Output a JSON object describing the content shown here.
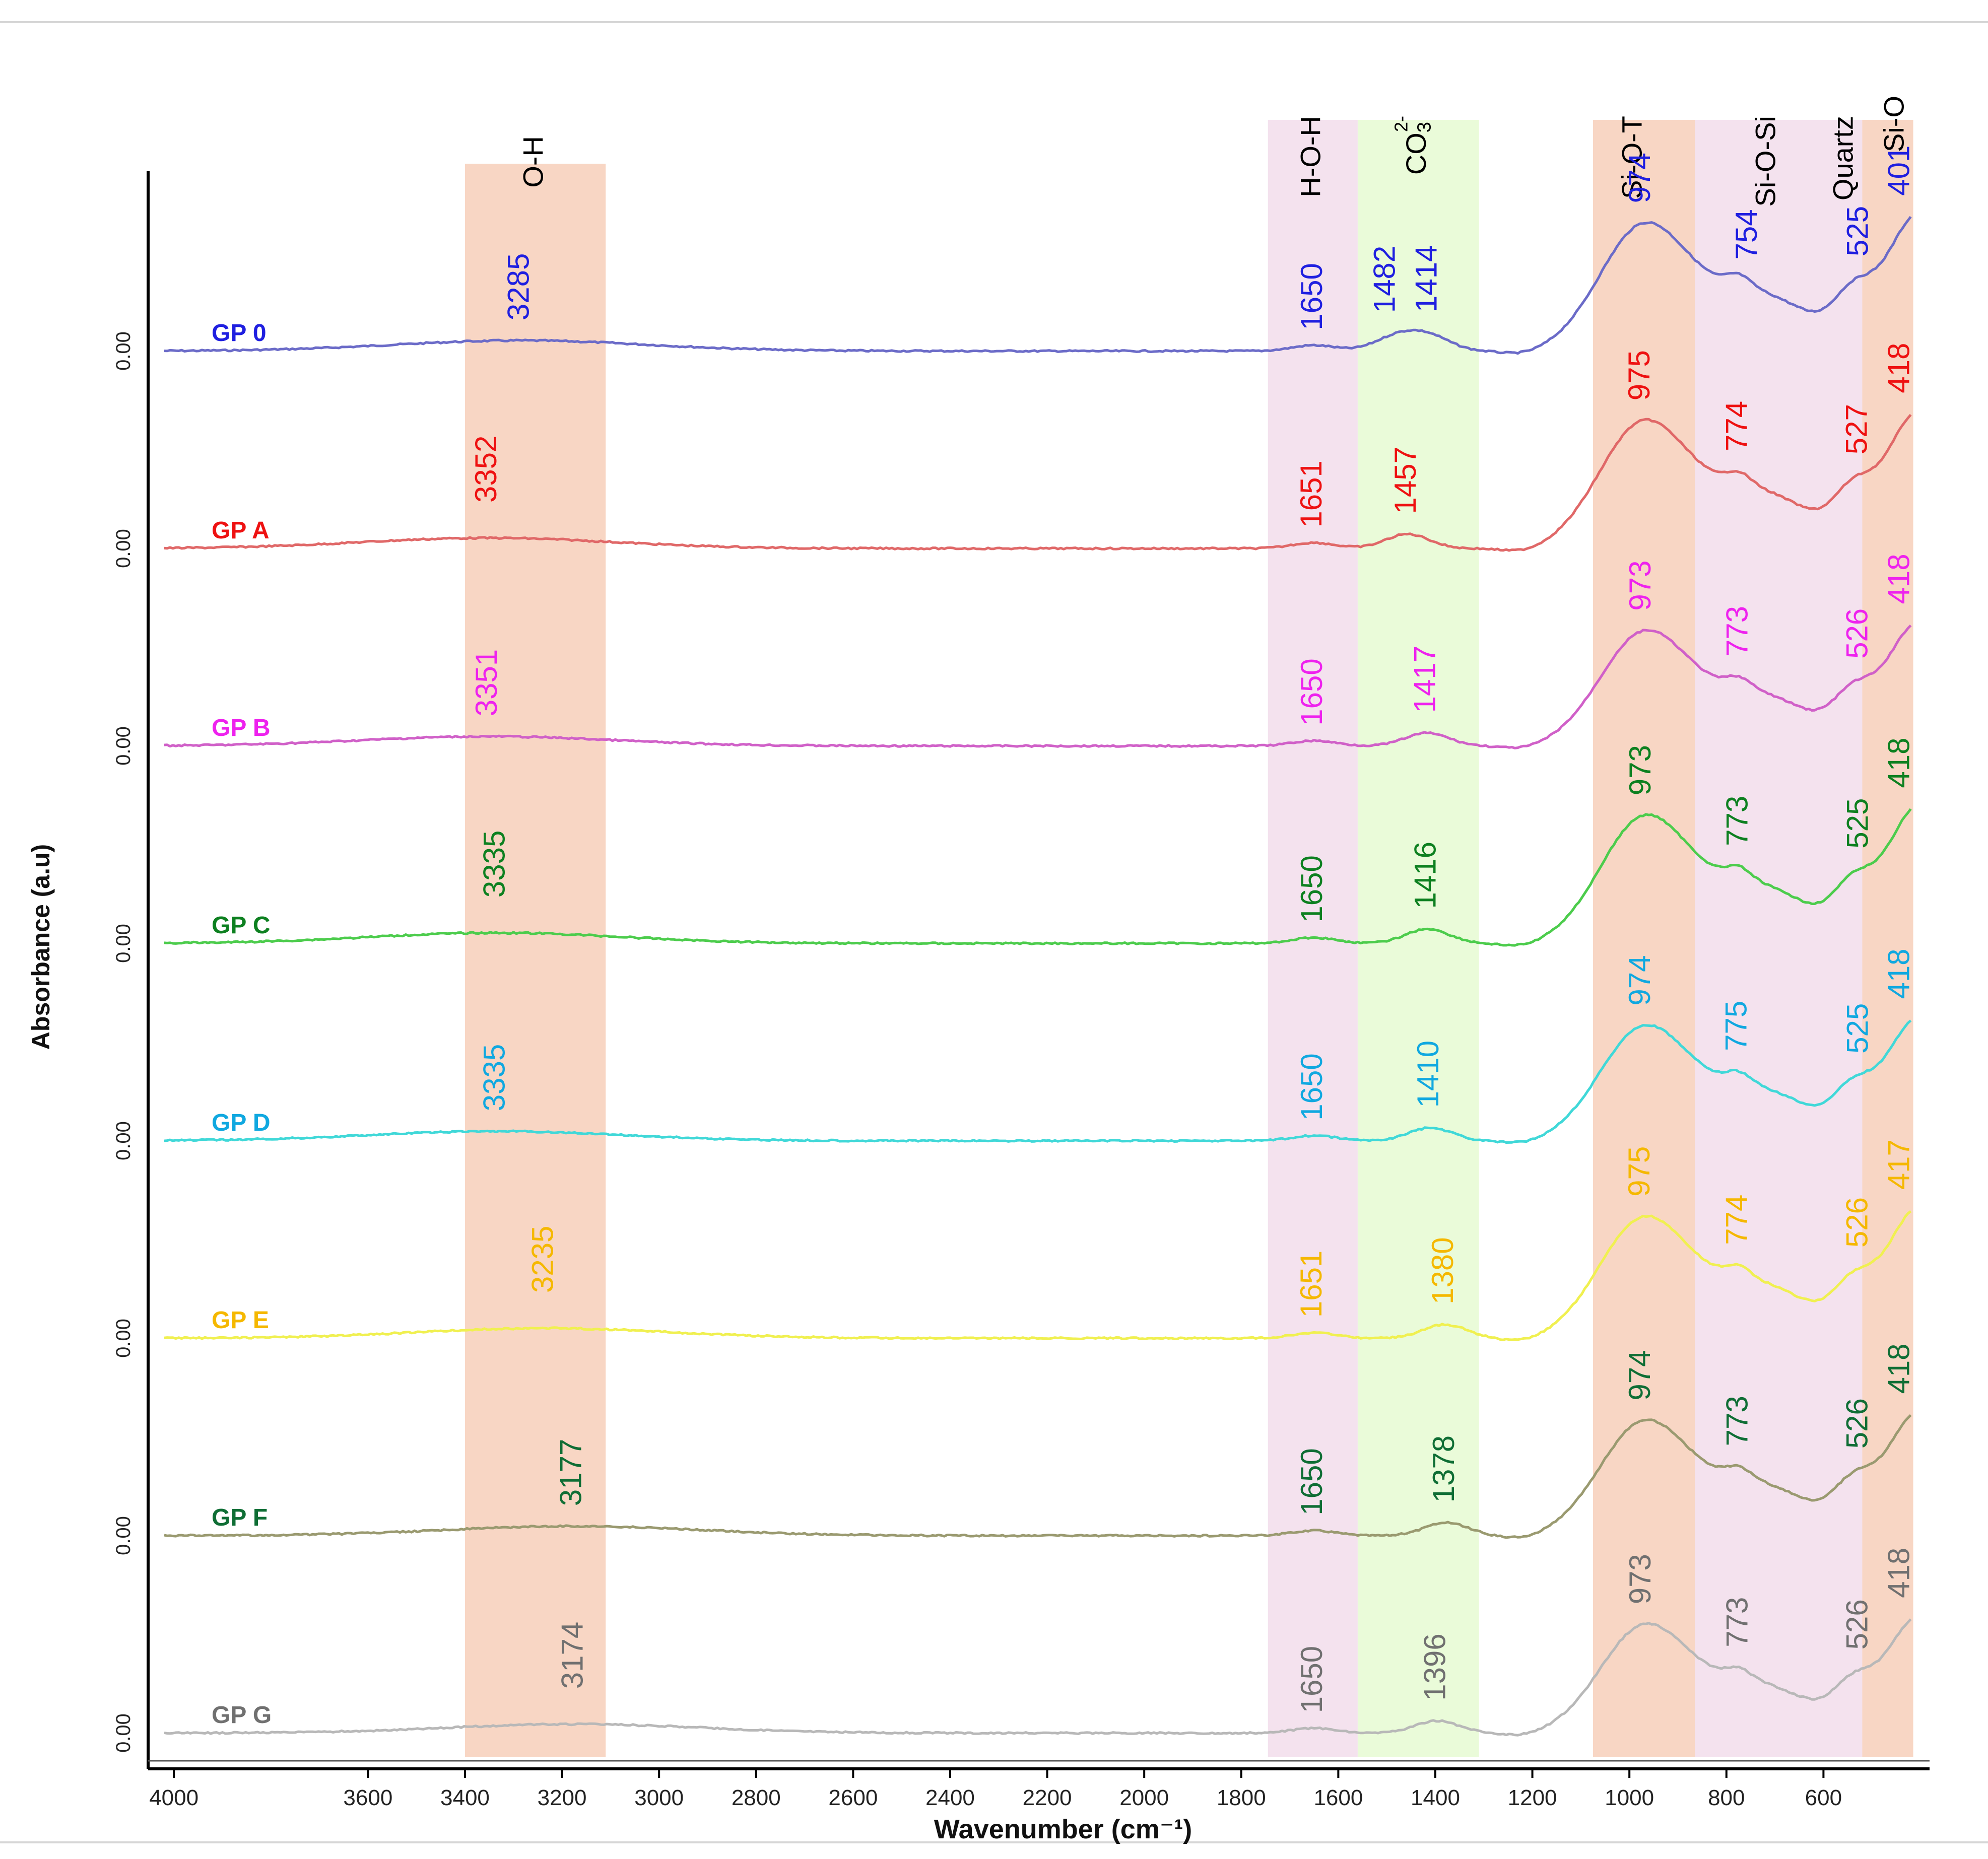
{
  "chart_data": {
    "type": "line",
    "title": "",
    "xlabel": "Wavenumber (cm⁻¹)",
    "ylabel": "Absorbance (a.u)",
    "xlim": [
      4050,
      400
    ],
    "x_ticks": [
      4000,
      3600,
      3400,
      3200,
      3000,
      2800,
      2600,
      2400,
      2200,
      2000,
      1800,
      1600,
      1400,
      1200,
      1000,
      800,
      600
    ],
    "y_tick_label": "0.00",
    "grid": false,
    "bands": [
      {
        "label": "O-H",
        "from": 3400,
        "to": 3110,
        "color": "#f8d6c4"
      },
      {
        "label": "H-O-H",
        "from": 1745,
        "to": 1560,
        "color": "#f4e2ee"
      },
      {
        "label": "CO",
        "label_sub": "3",
        "label_sup": "2-",
        "from": 1560,
        "to": 1310,
        "color": "#eafbd9"
      },
      {
        "label": "Si-O-T",
        "from": 1075,
        "to": 865,
        "color": "#f8d6c4"
      },
      {
        "label": "Si-O-Si",
        "from": 865,
        "to": 520,
        "color": "#f4e2ee"
      },
      {
        "label": "Quartz",
        "at": 545
      },
      {
        "label": "Si-O",
        "from": 520,
        "to": 415,
        "color": "#f8d6c4"
      }
    ],
    "series": [
      {
        "name": "GP 0",
        "color": "#1f1fe0",
        "line_color": "#6b6bc8",
        "intensity": 1.0,
        "peaks": [
          {
            "x": 3285,
            "label": "3285"
          },
          {
            "x": 1650,
            "label": "1650"
          },
          {
            "x": 1482,
            "label": "1482"
          },
          {
            "x": 1414,
            "label": "1414"
          },
          {
            "x": 974,
            "label": "974"
          },
          {
            "x": 754,
            "label": "754"
          },
          {
            "x": 525,
            "label": "525"
          },
          {
            "x": 401,
            "label": "401"
          }
        ]
      },
      {
        "name": "GP A",
        "color": "#ee1111",
        "line_color": "#e06868",
        "intensity": 1.0,
        "peaks": [
          {
            "x": 3352,
            "label": "3352"
          },
          {
            "x": 1651,
            "label": "1651"
          },
          {
            "x": 1457,
            "label": "1457"
          },
          {
            "x": 975,
            "label": "975"
          },
          {
            "x": 774,
            "label": "774"
          },
          {
            "x": 527,
            "label": "527"
          },
          {
            "x": 418,
            "label": "418"
          }
        ]
      },
      {
        "name": "GP B",
        "color": "#ee22ee",
        "line_color": "#d060c8",
        "intensity": 0.9,
        "peaks": [
          {
            "x": 3351,
            "label": "3351"
          },
          {
            "x": 1650,
            "label": "1650"
          },
          {
            "x": 1417,
            "label": "1417"
          },
          {
            "x": 973,
            "label": "973"
          },
          {
            "x": 773,
            "label": "773"
          },
          {
            "x": 526,
            "label": "526"
          },
          {
            "x": 418,
            "label": "418"
          }
        ]
      },
      {
        "name": "GP C",
        "color": "#0d8020",
        "line_color": "#4ccc4c",
        "intensity": 1.0,
        "peaks": [
          {
            "x": 3335,
            "label": "3335"
          },
          {
            "x": 1650,
            "label": "1650"
          },
          {
            "x": 1416,
            "label": "1416"
          },
          {
            "x": 973,
            "label": "973"
          },
          {
            "x": 773,
            "label": "773"
          },
          {
            "x": 525,
            "label": "525"
          },
          {
            "x": 418,
            "label": "418"
          }
        ]
      },
      {
        "name": "GP D",
        "color": "#10a8e0",
        "line_color": "#40d8d8",
        "intensity": 0.9,
        "peaks": [
          {
            "x": 3335,
            "label": "3335"
          },
          {
            "x": 1650,
            "label": "1650"
          },
          {
            "x": 1410,
            "label": "1410"
          },
          {
            "x": 974,
            "label": "974"
          },
          {
            "x": 775,
            "label": "775"
          },
          {
            "x": 525,
            "label": "525"
          },
          {
            "x": 418,
            "label": "418"
          }
        ]
      },
      {
        "name": "GP E",
        "color": "#f5b800",
        "line_color": "#f0f050",
        "intensity": 0.95,
        "peaks": [
          {
            "x": 3235,
            "label": "3235"
          },
          {
            "x": 1651,
            "label": "1651"
          },
          {
            "x": 1380,
            "label": "1380"
          },
          {
            "x": 975,
            "label": "975"
          },
          {
            "x": 774,
            "label": "774"
          },
          {
            "x": 526,
            "label": "526"
          },
          {
            "x": 417,
            "label": "417"
          }
        ]
      },
      {
        "name": "GP F",
        "color": "#0f6e35",
        "line_color": "#9a9a70",
        "intensity": 0.9,
        "peaks": [
          {
            "x": 3177,
            "label": "3177"
          },
          {
            "x": 1650,
            "label": "1650"
          },
          {
            "x": 1378,
            "label": "1378"
          },
          {
            "x": 974,
            "label": "974"
          },
          {
            "x": 773,
            "label": "773"
          },
          {
            "x": 526,
            "label": "526"
          },
          {
            "x": 418,
            "label": "418"
          }
        ]
      },
      {
        "name": "GP G",
        "color": "#707070",
        "line_color": "#b8b8b8",
        "intensity": 0.85,
        "peaks": [
          {
            "x": 3174,
            "label": "3174"
          },
          {
            "x": 1650,
            "label": "1650"
          },
          {
            "x": 1396,
            "label": "1396"
          },
          {
            "x": 973,
            "label": "973"
          },
          {
            "x": 773,
            "label": "773"
          },
          {
            "x": 526,
            "label": "526"
          },
          {
            "x": 418,
            "label": "418"
          }
        ]
      }
    ]
  }
}
